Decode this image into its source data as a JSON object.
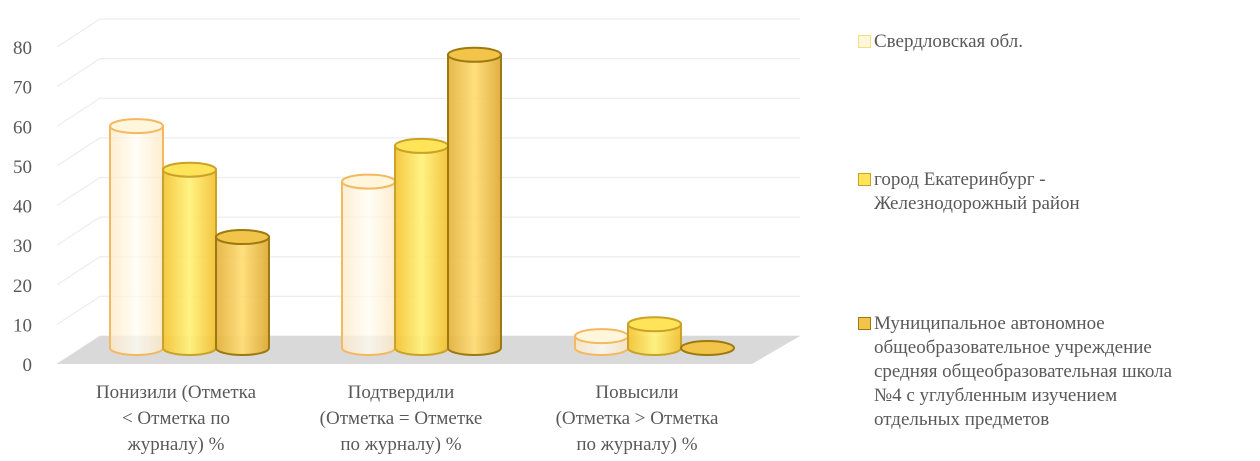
{
  "chart_data": {
    "type": "bar",
    "style": "3d-cylinder",
    "categories": [
      "Понизили (Отметка\n< Отметка по\nжурналу) %",
      "Подтвердили\n(Отметка = Отметке\nпо журналу) %",
      "Повысили\n(Отметка > Отметка\nпо журналу) %"
    ],
    "series": [
      {
        "name": "Свердловская обл.",
        "values": [
          56,
          42,
          3
        ],
        "color": "#FFF6DC",
        "stroke": "#F4B860"
      },
      {
        "name": "город Екатеринбург -\nЖелезнодорожный район",
        "values": [
          45,
          51,
          6
        ],
        "color": "#FFE45A",
        "stroke": "#C9A227"
      },
      {
        "name": "Муниципальное автономное\nобщеобразовательное учреждение\nсредняя общеобразовательная школа\n№4 с углубленным изучением\nотдельных предметов",
        "values": [
          28,
          74,
          0
        ],
        "color": "#F2C54A",
        "stroke": "#9C7A10"
      }
    ],
    "yticks": [
      "0",
      "10",
      "20",
      "30",
      "40",
      "50",
      "60",
      "70",
      "80"
    ],
    "ylim": [
      0,
      80
    ],
    "grid": true,
    "legend_position": "right"
  }
}
